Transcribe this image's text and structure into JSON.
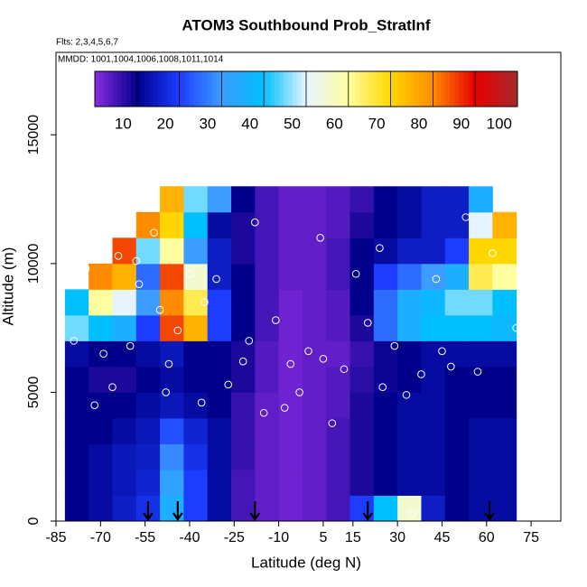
{
  "chart_data": {
    "type": "heatmap",
    "title": "ATOM3 Southbound Prob_StratInf",
    "flights_note": "Flts: 2,3,4,5,6,7",
    "dates_note": "MMDD: 1001,1004,1006,1008,1011,1014",
    "x_label": "Latitude (deg N)",
    "y_label": "Altitude (m)",
    "xlim": [
      -85,
      85
    ],
    "ylim": [
      0,
      18200
    ],
    "xticks": [
      -85,
      -70,
      -55,
      -40,
      -25,
      -10,
      5,
      15,
      30,
      45,
      60,
      75
    ],
    "yticks": [
      0,
      5000,
      10000,
      15000
    ],
    "x": [
      -78,
      -70,
      -62,
      -54,
      -46,
      -38,
      -30,
      -22,
      -14,
      -6,
      2,
      10,
      18,
      26,
      34,
      42,
      50,
      58,
      66
    ],
    "y": [
      500,
      1500,
      2500,
      3500,
      4500,
      5500,
      6500,
      7500,
      8500,
      9500,
      10500,
      11500,
      12500
    ],
    "z": [
      [
        10,
        12,
        15,
        18,
        35,
        20,
        12,
        5,
        3,
        2,
        3,
        5,
        20,
        40,
        55,
        15,
        10,
        12,
        12
      ],
      [
        10,
        12,
        14,
        16,
        32,
        20,
        12,
        5,
        3,
        2,
        3,
        5,
        8,
        10,
        12,
        12,
        10,
        12,
        12
      ],
      [
        10,
        12,
        14,
        15,
        28,
        18,
        12,
        6,
        3,
        2,
        3,
        5,
        8,
        10,
        12,
        12,
        10,
        12,
        12
      ],
      [
        10,
        10,
        12,
        14,
        22,
        16,
        12,
        6,
        3,
        2,
        3,
        5,
        8,
        10,
        12,
        12,
        10,
        12,
        12
      ],
      [
        10,
        10,
        10,
        12,
        14,
        12,
        10,
        6,
        3,
        2,
        3,
        4,
        8,
        10,
        12,
        12,
        10,
        10,
        10
      ],
      [
        10,
        8,
        8,
        10,
        12,
        10,
        10,
        8,
        4,
        2,
        3,
        4,
        7,
        9,
        10,
        12,
        10,
        10,
        10
      ],
      [
        12,
        10,
        10,
        12,
        14,
        10,
        10,
        8,
        4,
        2,
        3,
        3,
        6,
        9,
        10,
        12,
        12,
        12,
        12
      ],
      [
        45,
        40,
        35,
        20,
        85,
        75,
        20,
        10,
        5,
        2,
        3,
        4,
        8,
        25,
        35,
        40,
        40,
        40,
        38
      ],
      [
        40,
        60,
        50,
        30,
        80,
        65,
        20,
        10,
        5,
        2,
        3,
        4,
        10,
        25,
        35,
        38,
        45,
        45,
        40
      ],
      [
        null,
        80,
        75,
        25,
        85,
        55,
        15,
        10,
        5,
        3,
        3,
        5,
        10,
        20,
        25,
        30,
        35,
        65,
        60
      ],
      [
        null,
        null,
        85,
        45,
        60,
        30,
        15,
        8,
        5,
        3,
        3,
        5,
        10,
        12,
        15,
        15,
        20,
        70,
        70
      ],
      [
        null,
        null,
        null,
        80,
        70,
        40,
        12,
        8,
        5,
        3,
        3,
        4,
        8,
        10,
        12,
        15,
        15,
        50,
        75
      ],
      [
        null,
        null,
        null,
        null,
        75,
        45,
        30,
        10,
        5,
        3,
        3,
        4,
        6,
        10,
        12,
        15,
        15,
        35,
        null
      ]
    ],
    "colorbar": {
      "lim": [
        0,
        100
      ],
      "ticks": [
        10,
        20,
        30,
        40,
        50,
        60,
        70,
        80,
        90,
        100
      ],
      "colors": [
        "#8a2be2",
        "#00008b",
        "#1c3cff",
        "#3c9cff",
        "#00bfff",
        "#e6f4ff",
        "#ffffa0",
        "#ffd700",
        "#ff8c00",
        "#e60000",
        "#a52a2a"
      ]
    },
    "points": {
      "x": [
        -79,
        -75,
        -69,
        -66,
        -64,
        -60,
        -57,
        -52,
        -50,
        -47,
        -44,
        -40,
        -36,
        -31,
        -27,
        -22,
        -18,
        -15,
        -11,
        -6,
        -3,
        0,
        4,
        8,
        12,
        16,
        20,
        24,
        29,
        33,
        38,
        43,
        48,
        53,
        57,
        62,
        70,
        -72,
        -58,
        -48,
        -35,
        -20,
        -8,
        5,
        25,
        45,
        35
      ],
      "y": [
        7000,
        9800,
        6500,
        5200,
        10300,
        6800,
        9200,
        11200,
        8200,
        6100,
        7400,
        9600,
        4600,
        9400,
        5300,
        6200,
        11600,
        4200,
        7800,
        6100,
        5000,
        6600,
        11000,
        3800,
        5900,
        9600,
        7700,
        10600,
        6800,
        4900,
        5700,
        9400,
        6000,
        11800,
        5800,
        10400,
        7500,
        4500,
        10100,
        5000,
        8500,
        7000,
        4400,
        6300,
        5200,
        6600,
        300
      ],
      "color": "#ffffff"
    },
    "flight_lats": [
      -54,
      -44,
      -18,
      20,
      61
    ]
  }
}
